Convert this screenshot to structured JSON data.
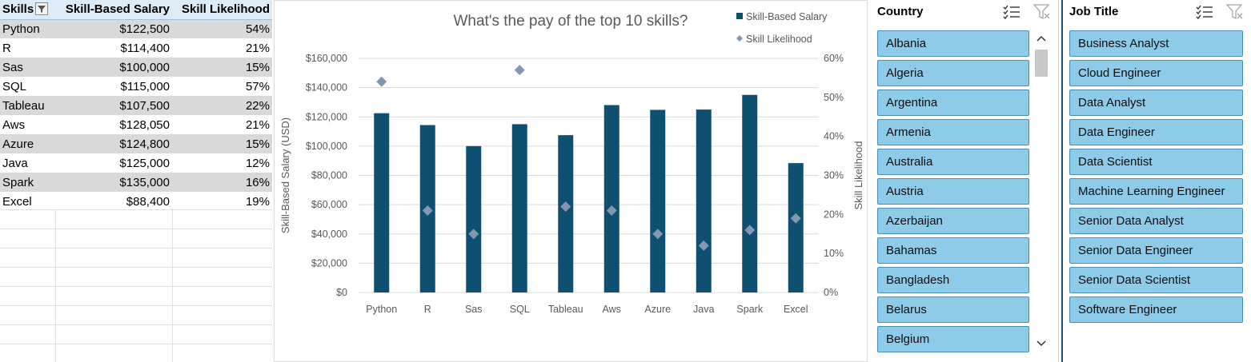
{
  "table": {
    "headers": [
      "Skills",
      "Skill-Based Salary",
      "Skill Likelihood"
    ],
    "rows": [
      {
        "skill": "Python",
        "salary": "$122,500",
        "likelihood": "54%"
      },
      {
        "skill": "R",
        "salary": "$114,400",
        "likelihood": "21%"
      },
      {
        "skill": "Sas",
        "salary": "$100,000",
        "likelihood": "15%"
      },
      {
        "skill": "SQL",
        "salary": "$115,000",
        "likelihood": "57%"
      },
      {
        "skill": "Tableau",
        "salary": "$107,500",
        "likelihood": "22%"
      },
      {
        "skill": "Aws",
        "salary": "$128,050",
        "likelihood": "21%"
      },
      {
        "skill": "Azure",
        "salary": "$124,800",
        "likelihood": "15%"
      },
      {
        "skill": "Java",
        "salary": "$125,000",
        "likelihood": "12%"
      },
      {
        "skill": "Spark",
        "salary": "$135,000",
        "likelihood": "16%"
      },
      {
        "skill": "Excel",
        "salary": "$88,400",
        "likelihood": "19%"
      }
    ]
  },
  "chart_data": {
    "type": "bar",
    "title": "What's the pay of the top 10 skills?",
    "categories": [
      "Python",
      "R",
      "Sas",
      "SQL",
      "Tableau",
      "Aws",
      "Azure",
      "Java",
      "Spark",
      "Excel"
    ],
    "series": [
      {
        "name": "Skill-Based Salary",
        "kind": "bar",
        "axis": "left",
        "color": "#0f5070",
        "values": [
          122500,
          114400,
          100000,
          115000,
          107500,
          128050,
          124800,
          125000,
          135000,
          88400
        ]
      },
      {
        "name": "Skill Likelihood",
        "kind": "scatter",
        "axis": "right",
        "color": "#8497b0",
        "values": [
          54,
          21,
          15,
          57,
          22,
          21,
          15,
          12,
          16,
          19
        ]
      }
    ],
    "ylabel": "Skill-Based Salary (USD)",
    "y2label": "Skill Likelihood",
    "ylim": [
      0,
      160000
    ],
    "y2lim": [
      0,
      60
    ],
    "yticks": [
      "$0",
      "$20,000",
      "$40,000",
      "$60,000",
      "$80,000",
      "$100,000",
      "$120,000",
      "$140,000",
      "$160,000"
    ],
    "y2ticks": [
      "0%",
      "10%",
      "20%",
      "30%",
      "40%",
      "50%",
      "60%"
    ],
    "grid": true,
    "legend": "top-right"
  },
  "slicers": {
    "country": {
      "title": "Country",
      "items": [
        "Albania",
        "Algeria",
        "Argentina",
        "Armenia",
        "Australia",
        "Austria",
        "Azerbaijan",
        "Bahamas",
        "Bangladesh",
        "Belarus",
        "Belgium"
      ]
    },
    "job": {
      "title": "Job Title",
      "items": [
        "Business Analyst",
        "Cloud Engineer",
        "Data Analyst",
        "Data Engineer",
        "Data Scientist",
        "Machine Learning Engineer",
        "Senior Data Analyst",
        "Senior Data Engineer",
        "Senior Data Scientist",
        "Software Engineer"
      ]
    }
  },
  "icons": {
    "multi_select": "multi-select-icon",
    "clear_filter": "clear-filter-icon",
    "filter_dropdown": "filter-dropdown-icon",
    "scroll_up": "chevron-up-icon",
    "scroll_down": "chevron-down-icon"
  }
}
